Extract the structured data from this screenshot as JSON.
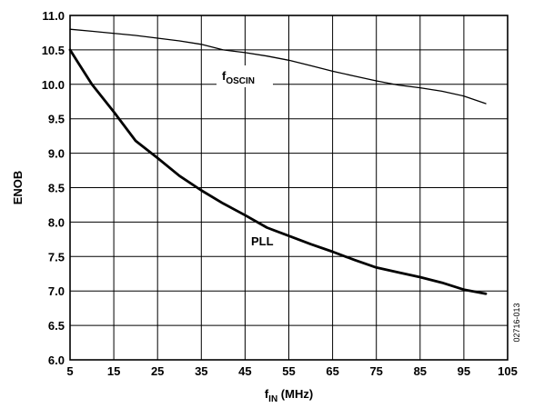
{
  "chart_data": {
    "type": "line",
    "xlabel": {
      "main": "f",
      "sub": "IN",
      "rest": " (MHz)"
    },
    "ylabel": "ENOB",
    "xlim": [
      5,
      105
    ],
    "ylim": [
      6.0,
      11.0
    ],
    "x_ticks": [
      5,
      15,
      25,
      35,
      45,
      55,
      65,
      75,
      85,
      95,
      105
    ],
    "y_ticks": [
      "6.0",
      "6.5",
      "7.0",
      "7.5",
      "8.0",
      "8.5",
      "9.0",
      "9.5",
      "10.0",
      "10.5",
      "11.0"
    ],
    "grid": true,
    "figure_id": "02716-013",
    "series": [
      {
        "name": {
          "main": "f",
          "sub": "OSCIN"
        },
        "x": [
          5,
          10,
          20,
          30,
          35,
          40,
          45,
          50,
          55,
          60,
          65,
          70,
          75,
          80,
          85,
          90,
          95,
          100
        ],
        "y": [
          10.8,
          10.77,
          10.71,
          10.63,
          10.58,
          10.5,
          10.46,
          10.41,
          10.35,
          10.27,
          10.19,
          10.12,
          10.05,
          9.99,
          9.95,
          9.9,
          9.83,
          9.72
        ]
      },
      {
        "name": {
          "main": "PLL"
        },
        "x": [
          5,
          7,
          10,
          15,
          20,
          25,
          30,
          35,
          40,
          45,
          50,
          55,
          60,
          65,
          70,
          75,
          80,
          85,
          90,
          95,
          100
        ],
        "y": [
          10.5,
          10.3,
          10.0,
          9.6,
          9.18,
          8.93,
          8.67,
          8.46,
          8.27,
          8.1,
          7.92,
          7.8,
          7.68,
          7.57,
          7.45,
          7.34,
          7.27,
          7.2,
          7.12,
          7.02,
          6.96
        ]
      }
    ]
  }
}
